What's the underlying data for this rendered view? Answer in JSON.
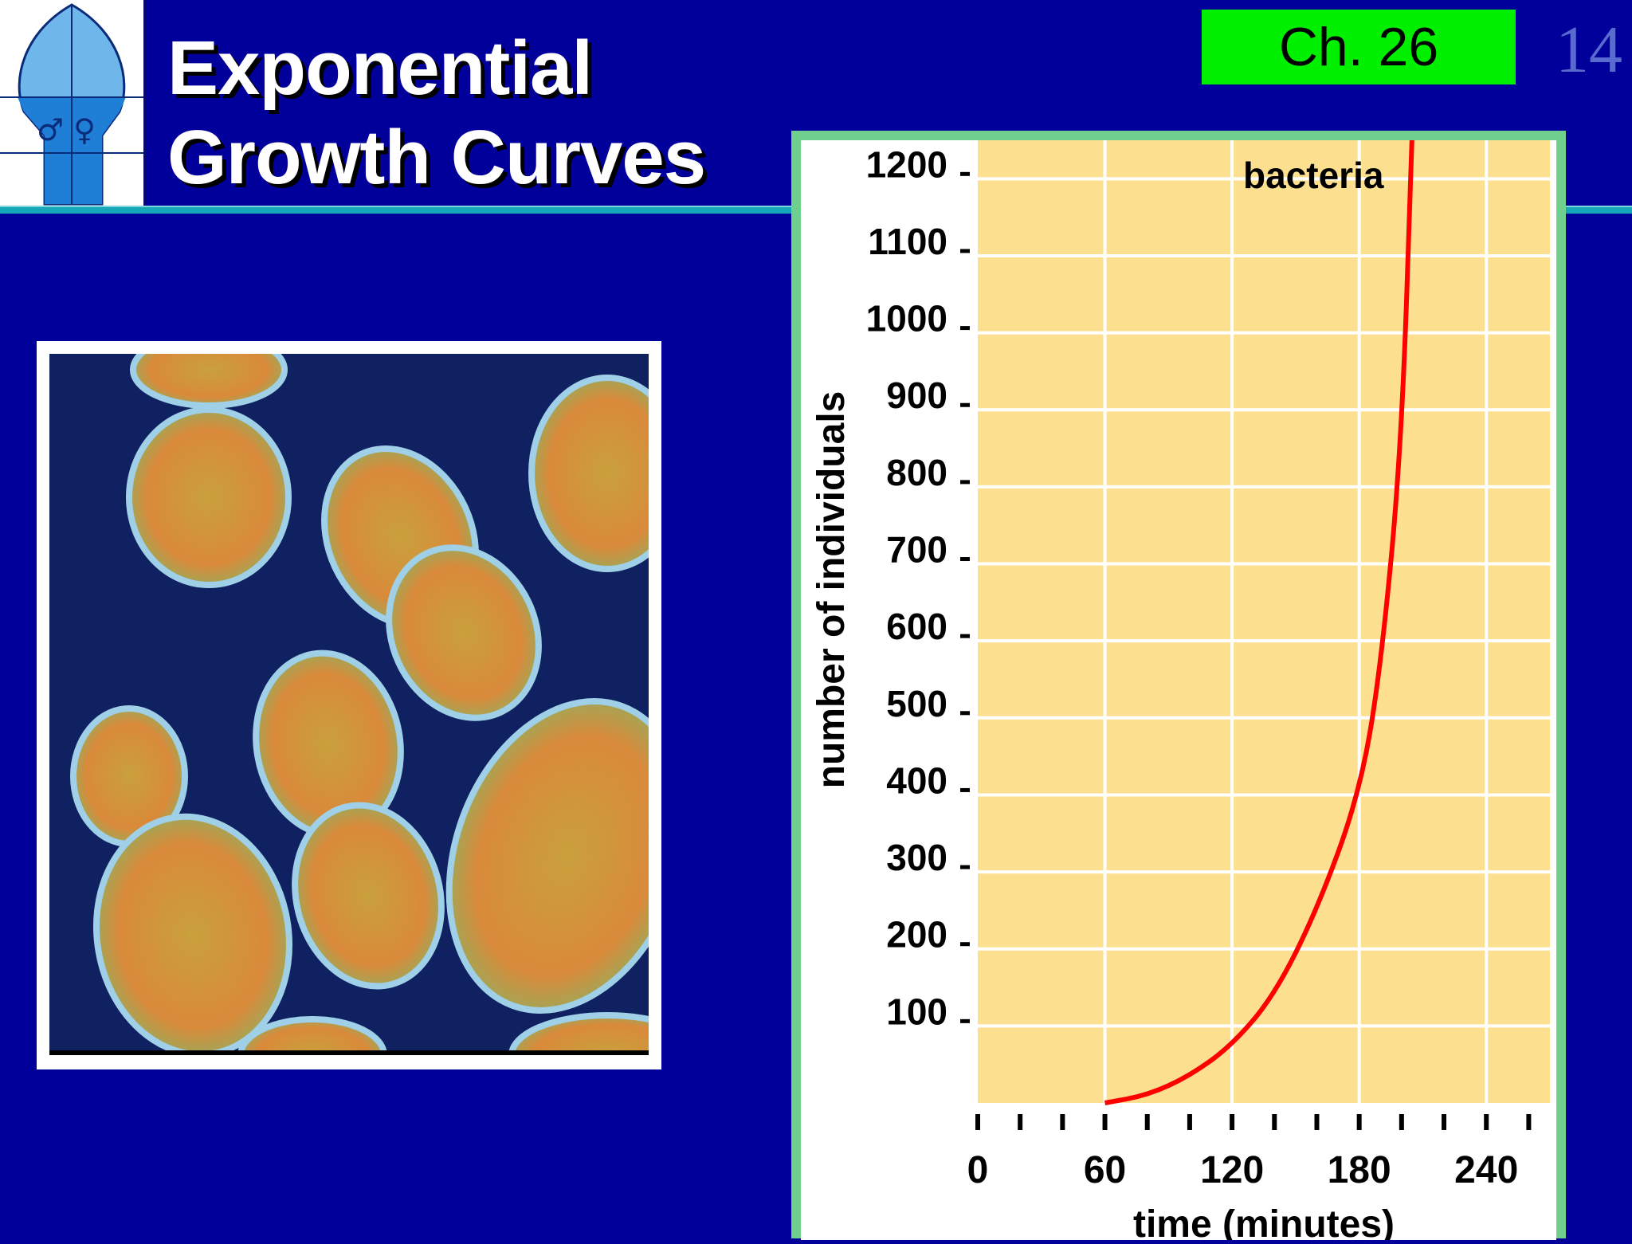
{
  "header": {
    "title_line1": "Exponential",
    "title_line2": "Growth Curves",
    "chapter": "Ch. 26",
    "slide_number": "14",
    "logo_symbols": "♂ ♀"
  },
  "colors": {
    "background": "#02009a",
    "chapter_badge": "#00f000",
    "chart_frame": "#6fcf8f",
    "plot_area": "#fde08f",
    "curve": "#ff0000"
  },
  "photo": {
    "subject": "dividing bacteria micrograph"
  },
  "chart_data": {
    "type": "line",
    "title": "bacteria",
    "xlabel": "time (minutes)",
    "ylabel": "number of individuals",
    "xlim": [
      0,
      270
    ],
    "ylim": [
      0,
      1250
    ],
    "x_ticks": [
      0,
      60,
      120,
      180,
      240
    ],
    "x_minor_ticks": [
      0,
      20,
      40,
      60,
      80,
      100,
      120,
      140,
      160,
      180,
      200,
      220,
      240,
      260
    ],
    "y_ticks": [
      100,
      200,
      300,
      400,
      500,
      600,
      700,
      800,
      900,
      1000,
      1100,
      1200
    ],
    "grid": true,
    "series": [
      {
        "color": "#ff0000",
        "x": [
          60,
          80,
          100,
          120,
          140,
          160,
          180,
          190,
          200,
          205
        ],
        "y": [
          0,
          10,
          35,
          75,
          140,
          250,
          400,
          560,
          850,
          1280
        ]
      }
    ]
  }
}
